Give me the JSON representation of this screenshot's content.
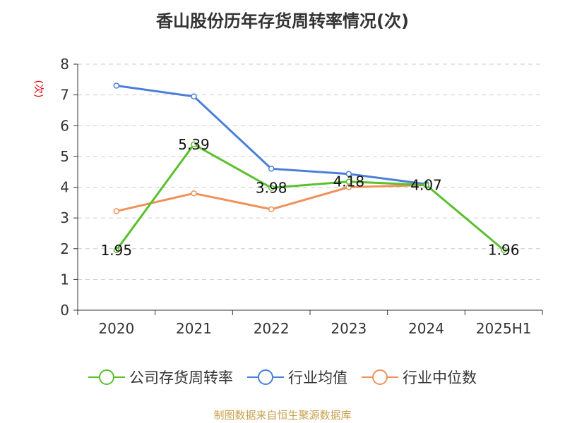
{
  "chart_data": {
    "type": "line",
    "title": "香山股份历年存货周转率情况(次)",
    "ylabel": "(次)",
    "categories": [
      "2020",
      "2021",
      "2022",
      "2023",
      "2024",
      "2025H1"
    ],
    "ylim": [
      0,
      8
    ],
    "yticks": [
      "0",
      "1",
      "2",
      "3",
      "4",
      "5",
      "6",
      "7",
      "8"
    ],
    "grid": true,
    "legend_position": "bottom",
    "series": [
      {
        "name": "公司存货周转率",
        "color": "#5ac02e",
        "values": [
          1.95,
          5.39,
          3.98,
          4.18,
          4.07,
          1.96
        ],
        "labels": [
          "1.95",
          "5.39",
          "3.98",
          "4.18",
          "4.07",
          "1.96"
        ]
      },
      {
        "name": "行业均值",
        "color": "#4a7fd8",
        "values": [
          7.3,
          6.95,
          4.6,
          4.43,
          4.1,
          null
        ]
      },
      {
        "name": "行业中位数",
        "color": "#f0915a",
        "values": [
          3.22,
          3.8,
          3.28,
          4.0,
          4.07,
          null
        ]
      }
    ]
  },
  "source": "制图数据来自恒生聚源数据库"
}
